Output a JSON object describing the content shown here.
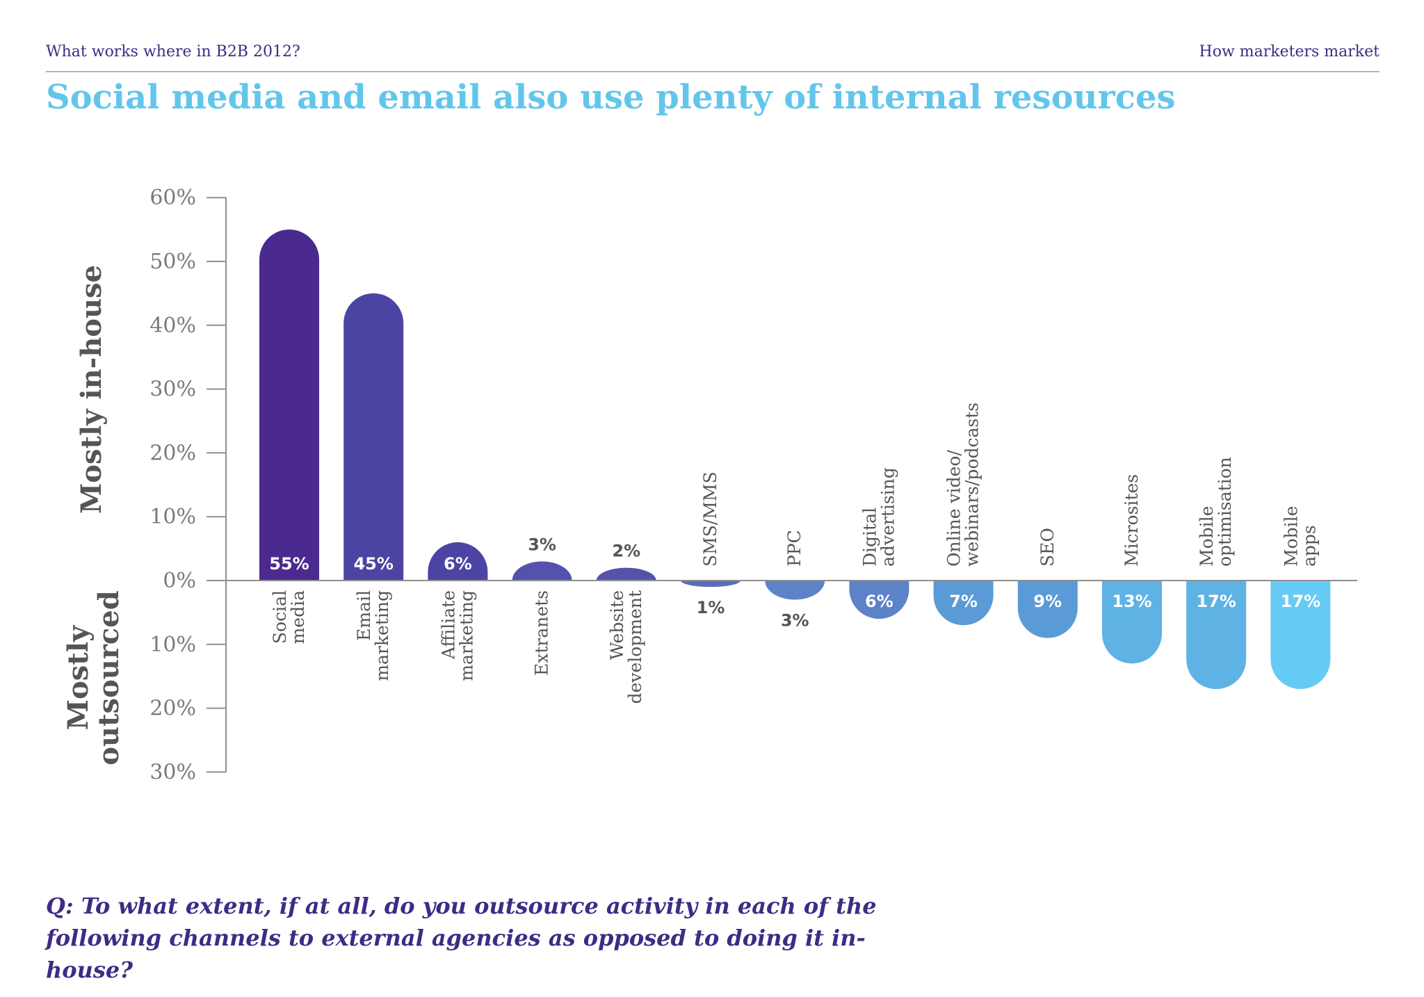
{
  "header": {
    "left": "What works where in B2B 2012?",
    "right": "How marketers market"
  },
  "headline": "Social media and email also use plenty of internal resources",
  "question": "Q: To what extent, if at all, do you outsource activity in each of the following channels to external agencies as opposed to doing it in-house?",
  "colors": {
    "bar_gradient": [
      "#4a2a8e",
      "#4c44a2",
      "#5552ae",
      "#5a6cbb",
      "#5c83c8",
      "#5a9ad6",
      "#5eb2e4",
      "#66cbf4"
    ],
    "axis": "#8f8f8f",
    "tick_text": "#7a7a7a",
    "category_text": "#555555",
    "side_label": "#555555",
    "title": "#62c6ec",
    "question": "#3f2b86"
  },
  "chart_data": {
    "type": "bar",
    "side_labels": {
      "above": "Mostly in-house",
      "below": [
        "Mostly",
        "outsourced"
      ]
    },
    "ylim": [
      -30,
      60
    ],
    "yticks": [
      {
        "value": 60,
        "label": "60%"
      },
      {
        "value": 50,
        "label": "50%"
      },
      {
        "value": 40,
        "label": "40%"
      },
      {
        "value": 30,
        "label": "30%"
      },
      {
        "value": 20,
        "label": "20%"
      },
      {
        "value": 10,
        "label": "10%"
      },
      {
        "value": 0,
        "label": "0%"
      },
      {
        "value": -10,
        "label": "10%"
      },
      {
        "value": -20,
        "label": "20%"
      },
      {
        "value": -30,
        "label": "30%"
      }
    ],
    "categories": [
      {
        "lines": [
          "Social",
          "media"
        ],
        "value": 55,
        "label": "55%"
      },
      {
        "lines": [
          "Email",
          "marketing"
        ],
        "value": 45,
        "label": "45%"
      },
      {
        "lines": [
          "Affiliate",
          "marketing"
        ],
        "value": 6,
        "label": "6%"
      },
      {
        "lines": [
          "Extranets"
        ],
        "value": 3,
        "label": "3%"
      },
      {
        "lines": [
          "Website",
          "development"
        ],
        "value": 2,
        "label": "2%"
      },
      {
        "lines": [
          "SMS/MMS"
        ],
        "value": -1,
        "label": "1%"
      },
      {
        "lines": [
          "PPC"
        ],
        "value": -3,
        "label": "3%"
      },
      {
        "lines": [
          "Digital",
          "advertising"
        ],
        "value": -6,
        "label": "6%"
      },
      {
        "lines": [
          "Online video/",
          "webinars/podcasts"
        ],
        "value": -7,
        "label": "7%"
      },
      {
        "lines": [
          "SEO"
        ],
        "value": -9,
        "label": "9%"
      },
      {
        "lines": [
          "Microsites"
        ],
        "value": -13,
        "label": "13%"
      },
      {
        "lines": [
          "Mobile",
          "optimisation"
        ],
        "value": -17,
        "label": "17%"
      },
      {
        "lines": [
          "Mobile",
          "apps"
        ],
        "value": -17,
        "label": "17%"
      }
    ]
  }
}
